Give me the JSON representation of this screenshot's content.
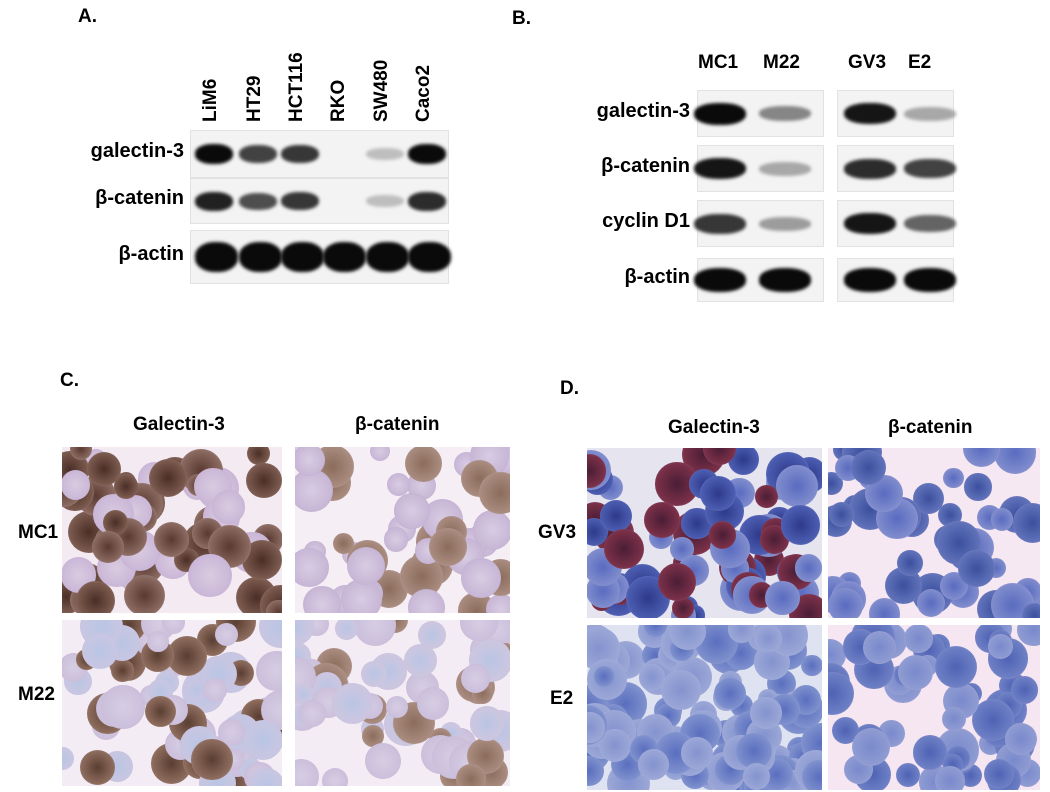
{
  "panel_a": {
    "label": "A.",
    "lanes": [
      "LiM6",
      "HT29",
      "HCT116",
      "RKO",
      "SW480",
      "Caco2"
    ],
    "rows": [
      {
        "name": "galectin-3",
        "intensity": [
          1.0,
          0.75,
          0.8,
          0.0,
          0.2,
          1.0
        ]
      },
      {
        "name": "β-catenin",
        "intensity": [
          0.9,
          0.7,
          0.8,
          0.0,
          0.2,
          0.85
        ]
      },
      {
        "name": "β-actin",
        "intensity": [
          1.0,
          1.0,
          1.0,
          1.0,
          1.0,
          1.0
        ]
      }
    ]
  },
  "panel_b": {
    "label": "B.",
    "lanes": [
      "MC1",
      "M22",
      "GV3",
      "E2"
    ],
    "rows": [
      {
        "name": "galectin-3",
        "intensity": [
          1.0,
          0.45,
          0.95,
          0.3
        ]
      },
      {
        "name": "β-catenin",
        "intensity": [
          0.95,
          0.3,
          0.85,
          0.75
        ]
      },
      {
        "name": "cyclin D1",
        "intensity": [
          0.8,
          0.35,
          0.95,
          0.6
        ]
      },
      {
        "name": "β-actin",
        "intensity": [
          1.0,
          1.0,
          1.0,
          1.0
        ]
      }
    ]
  },
  "panel_c": {
    "label": "C.",
    "columns": [
      "Galectin-3",
      "β-catenin"
    ],
    "rows": [
      "MC1",
      "M22"
    ]
  },
  "panel_d": {
    "label": "D.",
    "columns": [
      "Galectin-3",
      "β-catenin"
    ],
    "rows": [
      "GV3",
      "E2"
    ]
  }
}
